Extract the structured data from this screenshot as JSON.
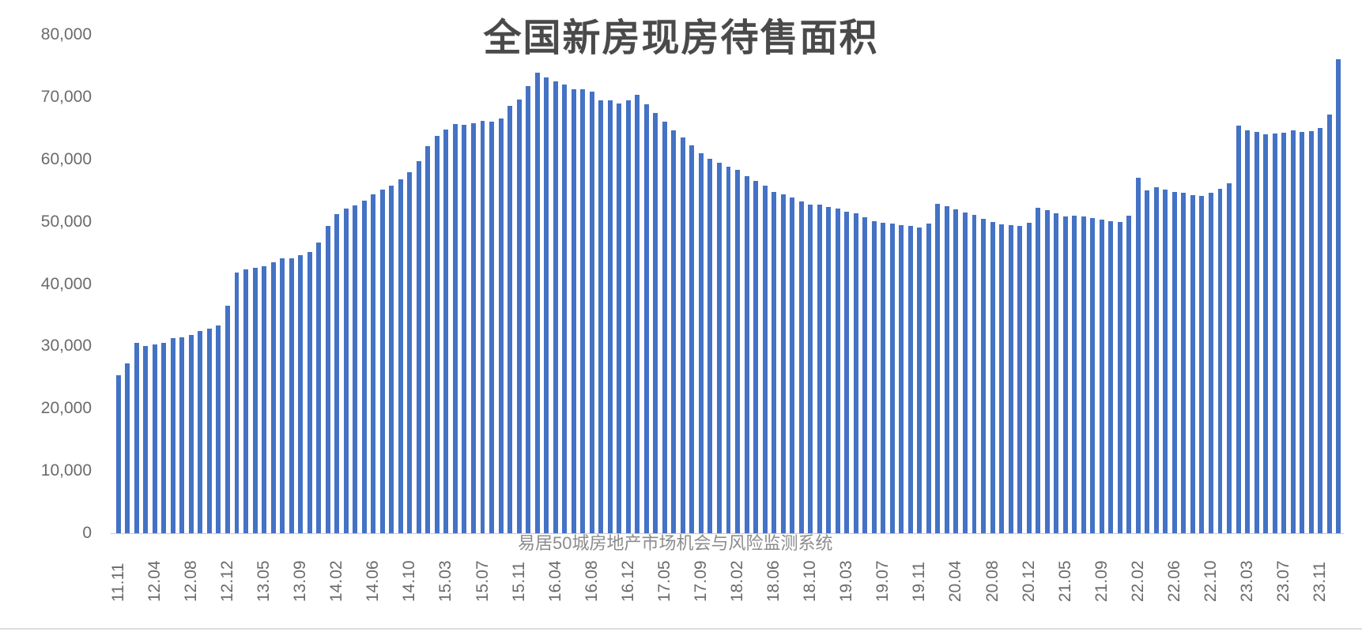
{
  "title": "全国新房现房待售面积",
  "watermark": "易居50城房地产市场机会与风险监测系统",
  "y_ticks": [
    "80,000",
    "70,000",
    "60,000",
    "50,000",
    "40,000",
    "30,000",
    "20,000",
    "10,000",
    "0"
  ],
  "colors": {
    "bar": "#4472c4",
    "text": "#6b6b6b",
    "title": "#4a4a4a"
  },
  "chart_data": {
    "type": "bar",
    "title": "全国新房现房待售面积",
    "xlabel": "",
    "ylabel": "",
    "ylim": [
      0,
      80000
    ],
    "yticks": [
      0,
      10000,
      20000,
      30000,
      40000,
      50000,
      60000,
      70000,
      80000
    ],
    "grid": false,
    "legend": "none",
    "annotation": "易居50城房地产市场机会与风险监测系统",
    "tick_labels": [
      "11.11",
      "12.04",
      "12.08",
      "12.12",
      "13.05",
      "13.09",
      "14.02",
      "14.06",
      "14.10",
      "15.03",
      "15.07",
      "15.11",
      "16.04",
      "16.08",
      "16.12",
      "17.05",
      "17.09",
      "18.02",
      "18.06",
      "18.10",
      "19.03",
      "19.07",
      "19.11",
      "20.04",
      "20.08",
      "20.12",
      "21.05",
      "21.09",
      "22.02",
      "22.06",
      "22.10",
      "23.03",
      "23.07",
      "23.11"
    ],
    "categories": [
      "11.11",
      "11.12",
      "12.02",
      "12.03",
      "12.04",
      "12.05",
      "12.06",
      "12.07",
      "12.08",
      "12.09",
      "12.10",
      "12.11",
      "12.12",
      "13.02",
      "13.03",
      "13.04",
      "13.05",
      "13.06",
      "13.07",
      "13.08",
      "13.09",
      "13.10",
      "13.11",
      "13.12",
      "14.02",
      "14.03",
      "14.04",
      "14.05",
      "14.06",
      "14.07",
      "14.08",
      "14.09",
      "14.10",
      "14.11",
      "14.12",
      "15.02",
      "15.03",
      "15.04",
      "15.05",
      "15.06",
      "15.07",
      "15.08",
      "15.09",
      "15.10",
      "15.11",
      "15.12",
      "16.02",
      "16.03",
      "16.04",
      "16.05",
      "16.06",
      "16.07",
      "16.08",
      "16.09",
      "16.10",
      "16.11",
      "16.12",
      "17.02",
      "17.03",
      "17.04",
      "17.05",
      "17.06",
      "17.07",
      "17.08",
      "17.09",
      "17.10",
      "17.11",
      "17.12",
      "18.02",
      "18.03",
      "18.04",
      "18.05",
      "18.06",
      "18.07",
      "18.08",
      "18.09",
      "18.10",
      "18.11",
      "18.12",
      "19.02",
      "19.03",
      "19.04",
      "19.05",
      "19.06",
      "19.07",
      "19.08",
      "19.09",
      "19.10",
      "19.11",
      "19.12",
      "20.02",
      "20.03",
      "20.04",
      "20.05",
      "20.06",
      "20.07",
      "20.08",
      "20.09",
      "20.10",
      "20.11",
      "20.12",
      "21.02",
      "21.03",
      "21.04",
      "21.05",
      "21.06",
      "21.07",
      "21.08",
      "21.09",
      "21.10",
      "21.11",
      "21.12",
      "22.02",
      "22.03",
      "22.04",
      "22.05",
      "22.06",
      "22.07",
      "22.08",
      "22.09",
      "22.10",
      "22.11",
      "22.12",
      "23.02",
      "23.03",
      "23.04",
      "23.05",
      "23.06",
      "23.07",
      "23.08",
      "23.09",
      "23.10",
      "23.11",
      "23.12",
      "24.02"
    ],
    "values": [
      25400,
      27200,
      30600,
      30000,
      30300,
      30500,
      31300,
      31500,
      31800,
      32500,
      32800,
      33300,
      36500,
      41800,
      42300,
      42600,
      42900,
      43500,
      44100,
      44100,
      44600,
      45100,
      46600,
      49300,
      51200,
      52100,
      52600,
      53400,
      54400,
      55100,
      55800,
      56800,
      57900,
      59700,
      62100,
      63800,
      64800,
      65700,
      65600,
      65800,
      66200,
      66100,
      66500,
      68600,
      69600,
      71800,
      73900,
      73200,
      72500,
      72000,
      71300,
      71300,
      70900,
      69500,
      69500,
      69000,
      69500,
      70400,
      68800,
      67500,
      66000,
      64600,
      63500,
      62300,
      61000,
      60100,
      59500,
      58800,
      58300,
      57300,
      56600,
      55800,
      54800,
      54400,
      53900,
      53200,
      52700,
      52700,
      52400,
      52100,
      51600,
      51300,
      50700,
      50100,
      49800,
      49700,
      49400,
      49300,
      49100,
      49700,
      52900,
      52500,
      52000,
      51500,
      51100,
      50500,
      50000,
      49600,
      49400,
      49300,
      49800,
      52200,
      51900,
      51300,
      50800,
      51000,
      50800,
      50600,
      50300,
      50100,
      49900,
      51000,
      57000,
      55000,
      55500,
      55200,
      54800,
      54600,
      54300,
      54100,
      54600,
      55300,
      56200,
      65400,
      64600,
      64400,
      64000,
      64100,
      64300,
      64600,
      64400,
      64500,
      65100,
      67200,
      76100
    ]
  }
}
